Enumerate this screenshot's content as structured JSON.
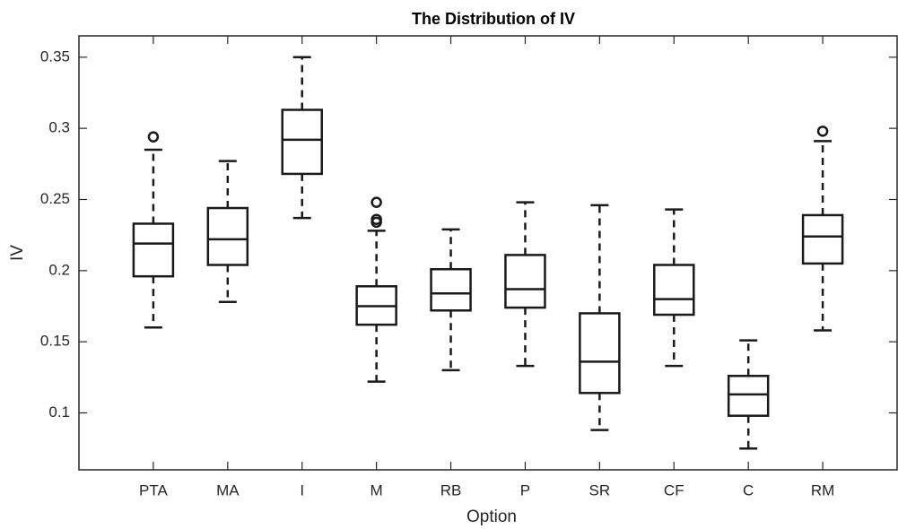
{
  "chart_data": {
    "type": "box",
    "title": "The Distribution of IV",
    "xlabel": "Option",
    "ylabel": "IV",
    "categories": [
      "PTA",
      "MA",
      "I",
      "M",
      "RB",
      "P",
      "SR",
      "CF",
      "C",
      "RM"
    ],
    "color": "#1a1a1a",
    "boxes": [
      {
        "min": 0.16,
        "q1": 0.196,
        "median": 0.219,
        "q3": 0.233,
        "max": 0.285,
        "outliers": [
          0.294
        ]
      },
      {
        "min": 0.178,
        "q1": 0.204,
        "median": 0.222,
        "q3": 0.244,
        "max": 0.277
      },
      {
        "min": 0.237,
        "q1": 0.268,
        "median": 0.292,
        "q3": 0.313,
        "max": 0.35
      },
      {
        "min": 0.122,
        "q1": 0.162,
        "median": 0.175,
        "q3": 0.189,
        "max": 0.228,
        "outliers": [
          0.248,
          0.236,
          0.234
        ]
      },
      {
        "min": 0.13,
        "q1": 0.172,
        "median": 0.184,
        "q3": 0.201,
        "max": 0.229
      },
      {
        "min": 0.133,
        "q1": 0.174,
        "median": 0.187,
        "q3": 0.211,
        "max": 0.248
      },
      {
        "min": 0.088,
        "q1": 0.114,
        "median": 0.136,
        "q3": 0.17,
        "max": 0.246
      },
      {
        "min": 0.133,
        "q1": 0.169,
        "median": 0.18,
        "q3": 0.204,
        "max": 0.243
      },
      {
        "min": 0.075,
        "q1": 0.098,
        "median": 0.113,
        "q3": 0.126,
        "max": 0.151
      },
      {
        "min": 0.158,
        "q1": 0.205,
        "median": 0.224,
        "q3": 0.239,
        "max": 0.291,
        "outliers": [
          0.298
        ]
      }
    ],
    "ylim": [
      0.06,
      0.365
    ],
    "yticks": [
      0.1,
      0.15,
      0.2,
      0.25,
      0.3,
      0.35
    ]
  }
}
